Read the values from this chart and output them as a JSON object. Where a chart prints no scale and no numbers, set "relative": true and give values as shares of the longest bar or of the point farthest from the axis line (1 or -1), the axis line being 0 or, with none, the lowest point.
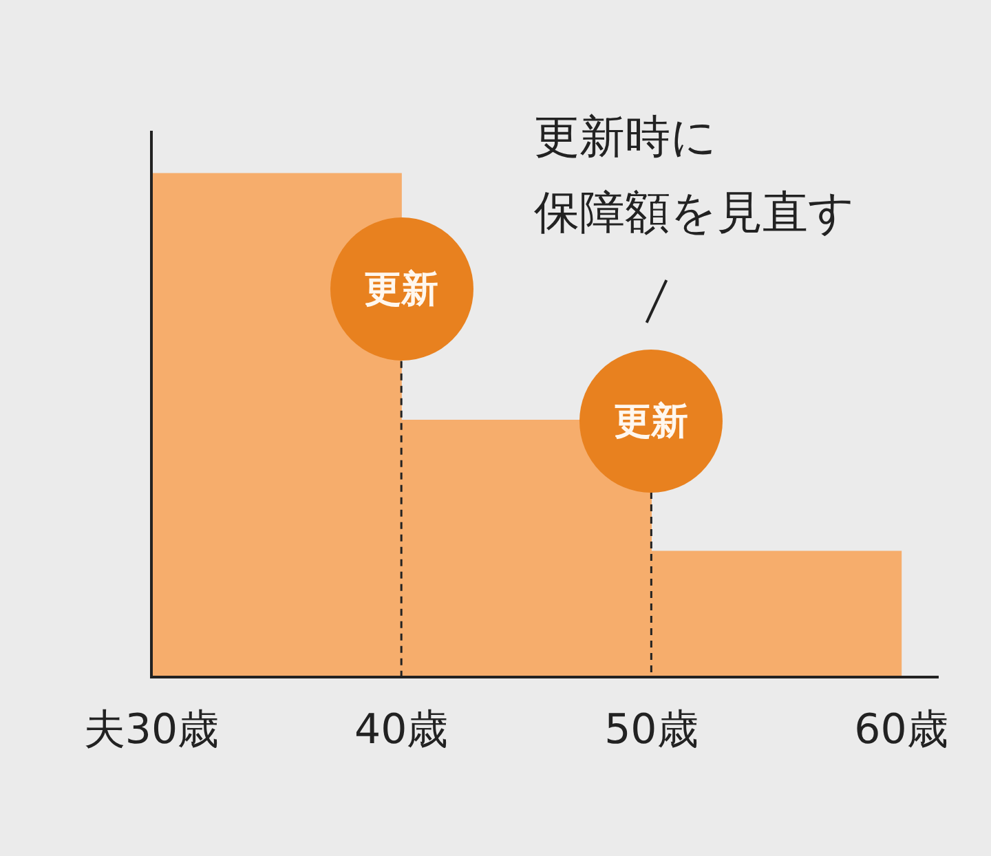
{
  "chart_data": {
    "type": "bar",
    "relative": true,
    "x": [
      35,
      45,
      55
    ],
    "values": [
      1,
      0.51,
      0.25
    ],
    "color": "#f6ad6c",
    "xlim": [
      30,
      61.5
    ],
    "xticks": [
      {
        "value": 30,
        "label": "夫30歳"
      },
      {
        "value": 40,
        "label": "40歳"
      },
      {
        "value": 50,
        "label": "50歳"
      },
      {
        "value": 60,
        "label": "60歳"
      }
    ],
    "grid": false,
    "legend": false,
    "ref_lines": [
      {
        "axis": "x",
        "value": 40,
        "label": "更新",
        "color": "#222222",
        "line_style": "dashed"
      },
      {
        "axis": "x",
        "value": 50,
        "label": "更新",
        "color": "#222222",
        "line_style": "dashed"
      }
    ],
    "annotations": [
      "更新時に",
      "保障額を見直す"
    ]
  }
}
